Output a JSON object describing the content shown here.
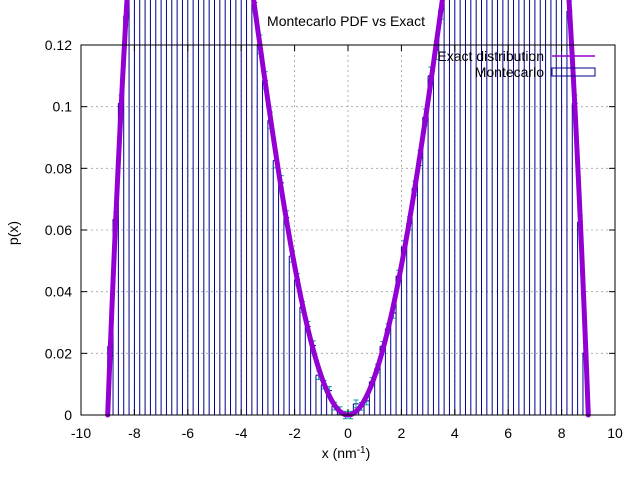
{
  "chart_data": {
    "type": "bar",
    "title": "Montecarlo PDF vs Exact",
    "xlabel_main": "x (nm",
    "xlabel_sup": "-1",
    "xlabel_end": ")",
    "ylabel": "p(x)",
    "xlim": [
      -10,
      10
    ],
    "ylim": [
      0,
      0.12
    ],
    "x_ticks": [
      -10,
      -8,
      -6,
      -4,
      -2,
      0,
      2,
      4,
      6,
      8,
      10
    ],
    "x_tick_labels": [
      "-10",
      "-8",
      "-6",
      "-4",
      "-2",
      "0",
      "2",
      "4",
      "6",
      "8",
      "10"
    ],
    "y_ticks": [
      0,
      0.02,
      0.04,
      0.06,
      0.08,
      0.1,
      0.12
    ],
    "y_tick_labels": [
      "0",
      "0.02",
      "0.04",
      "0.06",
      "0.08",
      "0.1",
      "0.12"
    ],
    "grid": true,
    "legend_position": "top-right",
    "series": [
      {
        "name": "Exact distribution",
        "kind": "line",
        "formula": "p(x) = 1.573e-4 * x^2 * (81 - x^2)",
        "color": "#9400d3"
      },
      {
        "name": "Montecarlo",
        "kind": "histogram",
        "bin_width": 0.2,
        "x_range": [
          -9,
          9
        ],
        "color": "#00008b",
        "errorbar_color": "#009e9e"
      }
    ]
  }
}
